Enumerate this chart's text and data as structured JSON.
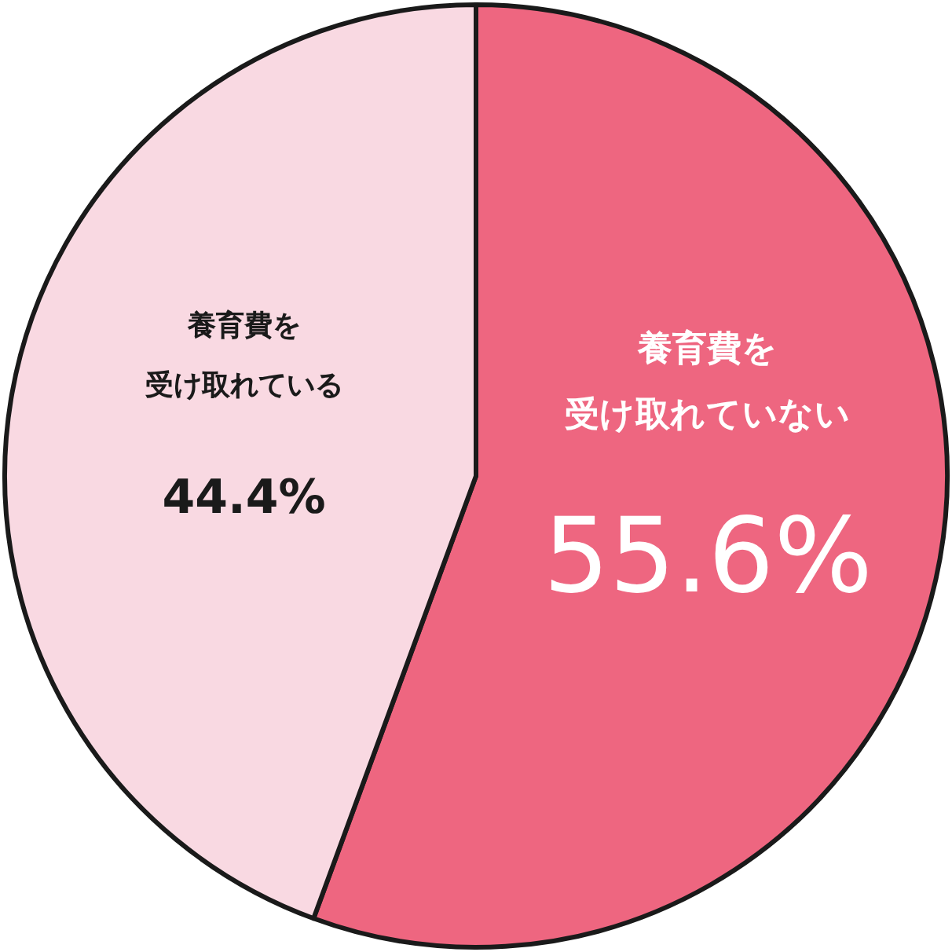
{
  "chart_data": {
    "type": "pie",
    "categories": [
      "養育費を受け取れていない",
      "養育費を受け取れている"
    ],
    "values": [
      55.6,
      44.4
    ],
    "colors": [
      "#ee6680",
      "#f9d9e2"
    ],
    "value_labels": [
      "55.6%",
      "44.4%"
    ],
    "legend": false
  }
}
